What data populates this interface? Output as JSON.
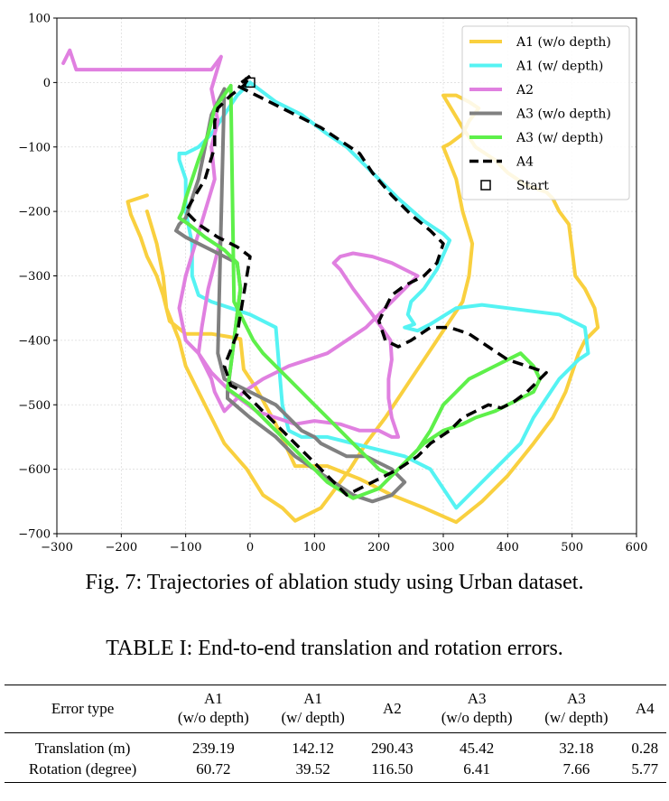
{
  "chart_data": {
    "type": "line",
    "title": "",
    "xlabel": "",
    "ylabel": "",
    "xlim": [
      -300,
      600
    ],
    "ylim": [
      -700,
      100
    ],
    "xticks": [
      -300,
      -200,
      -100,
      0,
      100,
      200,
      300,
      400,
      500,
      600
    ],
    "yticks": [
      100,
      0,
      -100,
      -200,
      -300,
      -400,
      -500,
      -600,
      -700
    ],
    "grid": true,
    "legend_position": "top-right",
    "series": [
      {
        "name": "A1 (w/o depth)",
        "color": "#f9d03f",
        "dash": "solid",
        "x": [
          -160,
          -190,
          -185,
          -170,
          -160,
          -145,
          -135,
          -125,
          -100,
          -60,
          -30,
          -15,
          -10,
          10,
          40,
          70,
          120,
          170,
          220,
          270,
          320,
          360,
          400,
          440,
          470,
          490,
          500,
          510,
          520,
          530,
          540,
          535,
          530,
          520,
          505,
          500,
          495,
          480,
          470,
          460,
          430,
          400,
          380,
          350,
          330,
          300,
          320,
          340,
          355,
          340,
          330,
          310,
          300,
          320,
          330,
          345,
          340,
          330,
          310,
          290,
          270,
          250,
          230,
          210,
          180,
          155,
          125,
          110,
          70,
          50,
          20,
          -5,
          -40,
          -60,
          -80,
          -100,
          -110,
          -130,
          -135,
          -145,
          -160
        ],
        "y": [
          -175,
          -185,
          -205,
          -240,
          -270,
          -300,
          -330,
          -370,
          -390,
          -390,
          -395,
          -398,
          -445,
          -475,
          -530,
          -595,
          -595,
          -615,
          -640,
          -660,
          -682,
          -650,
          -610,
          -560,
          -520,
          -480,
          -450,
          -420,
          -400,
          -390,
          -380,
          -350,
          -340,
          -320,
          -300,
          -260,
          -220,
          -200,
          -180,
          -170,
          -160,
          -140,
          -120,
          -100,
          -70,
          -20,
          -20,
          -30,
          -40,
          -60,
          -80,
          -95,
          -100,
          -150,
          -200,
          -250,
          -300,
          -340,
          -370,
          -400,
          -430,
          -460,
          -490,
          -520,
          -560,
          -600,
          -640,
          -660,
          -680,
          -660,
          -640,
          -600,
          -560,
          -520,
          -480,
          -440,
          -400,
          -350,
          -300,
          -250,
          -200
        ]
      },
      {
        "name": "A1 (w/ depth)",
        "color": "#55f3f3",
        "dash": "solid",
        "x": [
          0,
          40,
          80,
          120,
          150,
          170,
          200,
          230,
          270,
          300,
          310,
          290,
          270,
          250,
          245,
          255,
          240,
          260,
          280,
          320,
          360,
          400,
          440,
          480,
          500,
          520,
          525,
          510,
          500,
          480,
          460,
          440,
          420,
          380,
          350,
          320,
          300,
          280,
          240,
          200,
          160,
          120,
          80,
          60,
          50,
          40,
          0,
          -30,
          -60,
          -80,
          -90,
          -90,
          -100,
          -100,
          -110,
          -110,
          -100,
          -80,
          -60,
          -40,
          -20,
          0
        ],
        "y": [
          0,
          -30,
          -50,
          -80,
          -100,
          -120,
          -150,
          -180,
          -215,
          -235,
          -245,
          -290,
          -320,
          -340,
          -360,
          -375,
          -380,
          -385,
          -375,
          -350,
          -345,
          -350,
          -355,
          -360,
          -370,
          -380,
          -420,
          -430,
          -440,
          -460,
          -490,
          -520,
          -560,
          -600,
          -630,
          -660,
          -630,
          -600,
          -580,
          -570,
          -560,
          -550,
          -550,
          -540,
          -500,
          -380,
          -360,
          -350,
          -340,
          -330,
          -300,
          -250,
          -200,
          -150,
          -120,
          -110,
          -110,
          -100,
          -80,
          -50,
          -20,
          0
        ]
      },
      {
        "name": "A2",
        "color": "#e080e0",
        "dash": "solid",
        "x": [
          -290,
          -280,
          -270,
          -260,
          -240,
          -200,
          -160,
          -120,
          -80,
          -60,
          -45,
          -60,
          -50,
          -60,
          -55,
          -70,
          -85,
          -100,
          -110,
          -100,
          -80,
          -60,
          -30,
          10,
          40,
          70,
          100,
          140,
          170,
          200,
          220,
          230,
          220,
          215,
          215,
          220,
          218,
          190,
          160,
          140,
          130,
          140,
          160,
          190,
          220,
          240,
          260,
          240,
          210,
          180,
          150,
          120,
          90,
          60,
          40,
          20,
          5,
          -10,
          -20,
          -30,
          -35,
          -40,
          -45,
          -55,
          -60,
          -70,
          -80,
          -75,
          -65,
          -55,
          -45
        ],
        "y": [
          30,
          50,
          20,
          20,
          20,
          20,
          20,
          20,
          20,
          20,
          40,
          -10,
          -60,
          -100,
          -150,
          -200,
          -250,
          -300,
          -350,
          -400,
          -420,
          -450,
          -480,
          -510,
          -520,
          -530,
          -525,
          -530,
          -540,
          -540,
          -550,
          -550,
          -520,
          -490,
          -460,
          -430,
          -400,
          -360,
          -320,
          -290,
          -280,
          -270,
          -265,
          -270,
          -280,
          -290,
          -300,
          -320,
          -350,
          -380,
          -400,
          -420,
          -430,
          -440,
          -450,
          -460,
          -470,
          -480,
          -490,
          -500,
          -505,
          -510,
          -500,
          -480,
          -460,
          -440,
          -420,
          -380,
          -320,
          -280,
          -240
        ]
      },
      {
        "name": "A3 (w/o depth)",
        "color": "#808080",
        "dash": "solid",
        "x": [
          -40,
          -60,
          -70,
          -80,
          -90,
          -100,
          -110,
          -115,
          -100,
          -80,
          -60,
          -40,
          -20,
          -15,
          -20,
          -25,
          -30,
          -35,
          -35,
          0,
          40,
          70,
          100,
          130,
          160,
          190,
          220,
          240,
          220,
          200,
          180,
          150,
          130,
          110,
          100,
          80,
          60,
          40,
          20,
          0,
          -40,
          -50,
          -40
        ],
        "y": [
          -10,
          -50,
          -100,
          -150,
          -180,
          -210,
          -220,
          -230,
          -240,
          -250,
          -260,
          -270,
          -280,
          -320,
          -360,
          -400,
          -440,
          -480,
          -490,
          -520,
          -550,
          -580,
          -600,
          -620,
          -640,
          -650,
          -640,
          -620,
          -600,
          -590,
          -580,
          -580,
          -570,
          -560,
          -550,
          -540,
          -520,
          -500,
          -490,
          -480,
          -460,
          -420,
          -10
        ]
      },
      {
        "name": "A3 (w/ depth)",
        "color": "#5ef04a",
        "dash": "solid",
        "x": [
          -30,
          -55,
          -65,
          -80,
          -90,
          -100,
          -105,
          -110,
          -95,
          -70,
          -40,
          -20,
          -15,
          -20,
          -25,
          -30,
          -35,
          0,
          30,
          60,
          90,
          120,
          160,
          200,
          230,
          260,
          280,
          300,
          320,
          340,
          360,
          380,
          400,
          420,
          440,
          450,
          440,
          420,
          400,
          380,
          350,
          330,
          300,
          270,
          250,
          230,
          220,
          200,
          180,
          160,
          140,
          120,
          100,
          80,
          60,
          40,
          20,
          5,
          -5,
          -15,
          -25,
          -30
        ],
        "y": [
          -5,
          -40,
          -80,
          -120,
          -150,
          -180,
          -200,
          -210,
          -220,
          -240,
          -260,
          -280,
          -320,
          -360,
          -400,
          -440,
          -475,
          -500,
          -530,
          -560,
          -590,
          -620,
          -645,
          -630,
          -600,
          -570,
          -540,
          -500,
          -480,
          -460,
          -450,
          -440,
          -430,
          -420,
          -440,
          -460,
          -480,
          -490,
          -500,
          -510,
          -520,
          -530,
          -540,
          -560,
          -580,
          -600,
          -610,
          -600,
          -580,
          -560,
          -540,
          -520,
          -500,
          -480,
          -460,
          -440,
          -420,
          -400,
          -380,
          -360,
          -340,
          -5
        ]
      },
      {
        "name": "A4",
        "color": "#000000",
        "dash": "dashed",
        "x": [
          0,
          -20,
          -10,
          20,
          50,
          80,
          110,
          140,
          170,
          190,
          220,
          250,
          280,
          300,
          290,
          270,
          240,
          220,
          210,
          200,
          210,
          230,
          250,
          280,
          310,
          340,
          370,
          400,
          430,
          460,
          450,
          430,
          410,
          390,
          370,
          350,
          330,
          310,
          280,
          260,
          230,
          200,
          180,
          160,
          150,
          130,
          110,
          90,
          70,
          50,
          30,
          10,
          -10,
          -30,
          -40,
          -20,
          0,
          -20,
          -50,
          -80,
          -100,
          -70,
          -55,
          -55,
          -50,
          -30,
          -10,
          0
        ],
        "y": [
          10,
          -5,
          -10,
          -25,
          -40,
          -55,
          -70,
          -90,
          -110,
          -140,
          -175,
          -205,
          -230,
          -250,
          -280,
          -300,
          -315,
          -330,
          -350,
          -370,
          -400,
          -410,
          -400,
          -380,
          -380,
          -390,
          -410,
          -430,
          -440,
          -450,
          -460,
          -480,
          -495,
          -505,
          -500,
          -510,
          -520,
          -540,
          -560,
          -580,
          -600,
          -615,
          -625,
          -635,
          -640,
          -620,
          -600,
          -580,
          -560,
          -540,
          -520,
          -500,
          -480,
          -470,
          -440,
          -390,
          -270,
          -255,
          -240,
          -220,
          -200,
          -150,
          -100,
          -60,
          -40,
          -20,
          -5,
          10
        ]
      }
    ],
    "start_marker": {
      "name": "Start",
      "x": 0,
      "y": 0
    }
  },
  "caption": "Fig. 7: Trajectories of ablation study using Urban dataset.",
  "table": {
    "title": "TABLE I: End-to-end translation and rotation errors.",
    "headers": [
      {
        "line1": "Error type",
        "line2": ""
      },
      {
        "line1": "A1",
        "line2": "(w/o depth)"
      },
      {
        "line1": "A1",
        "line2": "(w/ depth)"
      },
      {
        "line1": "A2",
        "line2": ""
      },
      {
        "line1": "A3",
        "line2": "(w/o depth)"
      },
      {
        "line1": "A3",
        "line2": "(w/ depth)"
      },
      {
        "line1": "A4",
        "line2": ""
      }
    ],
    "rows": [
      [
        "Translation (m)",
        "239.19",
        "142.12",
        "290.43",
        "45.42",
        "32.18",
        "0.28"
      ],
      [
        "Rotation (degree)",
        "60.72",
        "39.52",
        "116.50",
        "6.41",
        "7.66",
        "5.77"
      ]
    ]
  }
}
